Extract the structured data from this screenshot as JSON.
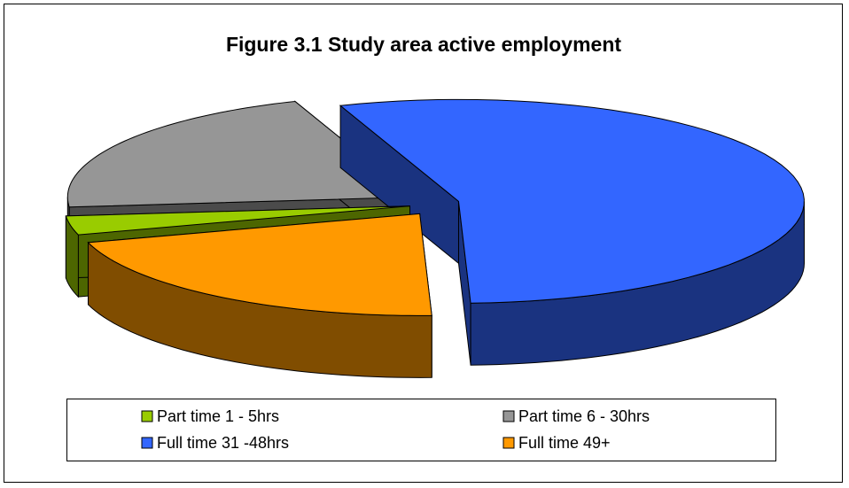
{
  "chart_data": {
    "type": "pie",
    "title": "Figure 3.1 Study area active employment",
    "categories": [
      "Part time 1 - 5hrs",
      "Part time 6 - 30hrs",
      "Full time 31 -48hrs",
      "Full time 49+"
    ],
    "values": [
      3,
      21,
      55,
      21
    ],
    "colors": [
      "#99cc00",
      "#969696",
      "#3366ff",
      "#ff9900"
    ],
    "legend": "bottom"
  }
}
